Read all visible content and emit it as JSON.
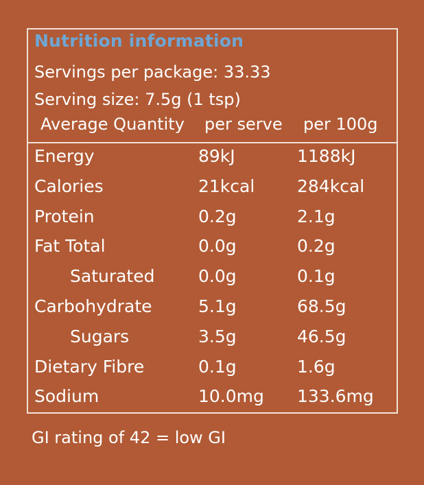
{
  "panel": {
    "title": "Nutrition information",
    "servings_per_package": "Servings per package: 33.33",
    "serving_size": "Serving size: 7.5g (1 tsp)",
    "columns": [
      "Average Quantity",
      "per serve",
      "per 100g"
    ],
    "rows": [
      {
        "name": "Energy",
        "per_serve": "89kJ",
        "per_100g": "1188kJ"
      },
      {
        "name": "Calories",
        "per_serve": "21kcal",
        "per_100g": "284kcal"
      },
      {
        "name": "Protein",
        "per_serve": "0.2g",
        "per_100g": "2.1g"
      },
      {
        "name": "Fat Total",
        "per_serve": "0.0g",
        "per_100g": "0.2g"
      },
      {
        "name": "Saturated",
        "per_serve": "0.0g",
        "per_100g": "0.1g"
      },
      {
        "name": "Carbohydrate",
        "per_serve": "5.1g",
        "per_100g": "68.5g"
      },
      {
        "name": "Sugars",
        "per_serve": "3.5g",
        "per_100g": "46.5g"
      },
      {
        "name": "Dietary Fibre",
        "per_serve": "0.1g",
        "per_100g": "1.6g"
      },
      {
        "name": "Sodium",
        "per_serve": "10.0mg",
        "per_100g": "133.6mg"
      }
    ]
  },
  "footer": "GI rating of 42 = low GI",
  "colors": {
    "background": "#b15a35",
    "title": "#6fa6d3",
    "text": "#ffffff",
    "border": "#f2e3d9"
  }
}
